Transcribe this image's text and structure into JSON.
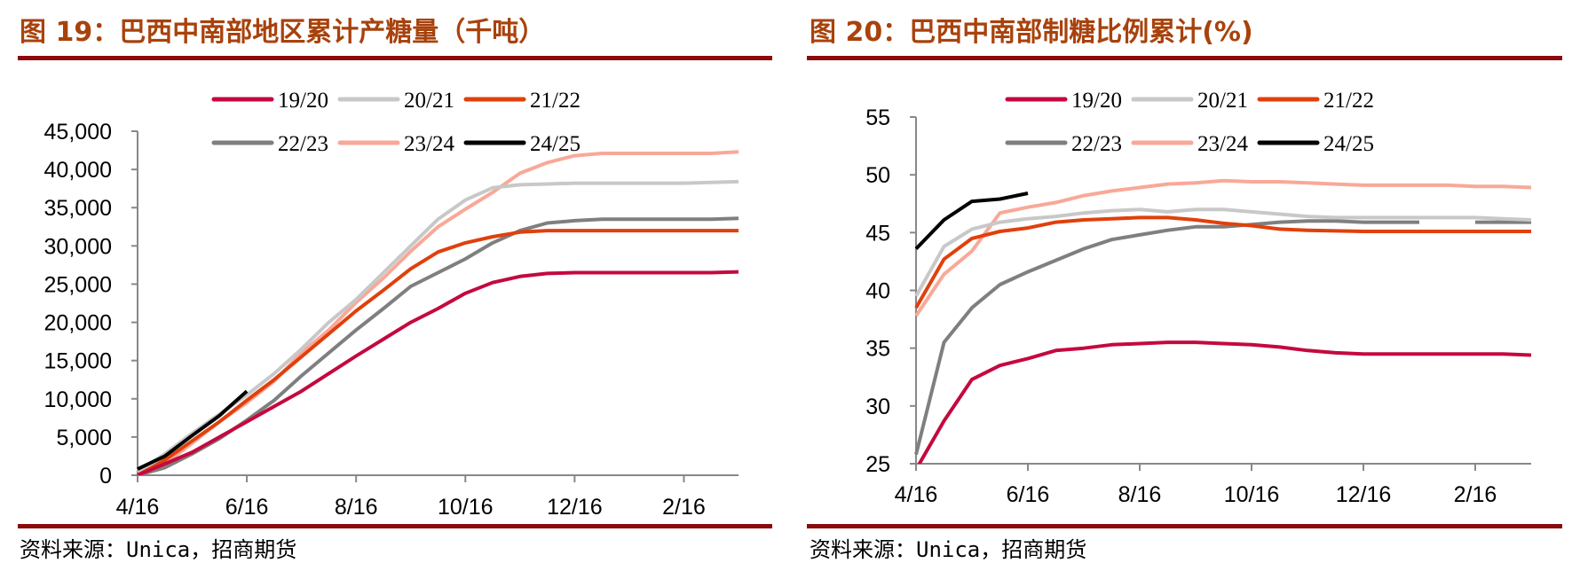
{
  "colors": {
    "rule": "#8b0a0a",
    "axis": "#888888",
    "series": {
      "19/20": "#c4093f",
      "20/21": "#c8c8c8",
      "21/22": "#e0400c",
      "22/23": "#7f7f7f",
      "23/24": "#f9a898",
      "24/25": "#000000"
    }
  },
  "chart_data": [
    {
      "type": "line",
      "title": "图 19：巴西中南部地区累计产糖量（千吨）",
      "source": "资料来源：Unica，招商期货",
      "x_ticks": [
        "4/16",
        "6/16",
        "8/16",
        "10/16",
        "12/16",
        "2/16"
      ],
      "x_tick_index": [
        0,
        4,
        8,
        12,
        16,
        20
      ],
      "x_points": 23,
      "y_ticks": [
        "0",
        "5,000",
        "10,000",
        "15,000",
        "20,000",
        "25,000",
        "30,000",
        "35,000",
        "40,000",
        "45,000"
      ],
      "ylim": [
        0,
        45000
      ],
      "legend": "top-center",
      "series": [
        {
          "name": "19/20",
          "values": [
            0,
            1500,
            3000,
            5000,
            7000,
            9000,
            11000,
            13300,
            15600,
            17800,
            20000,
            21800,
            23800,
            25200,
            26000,
            26400,
            26500,
            26500,
            26500,
            26500,
            26500,
            26500,
            26600
          ]
        },
        {
          "name": "20/21",
          "values": [
            500,
            2800,
            5500,
            8000,
            10500,
            13300,
            16500,
            20000,
            23000,
            26500,
            30000,
            33500,
            36000,
            37600,
            38000,
            38100,
            38200,
            38200,
            38200,
            38200,
            38200,
            38300,
            38400
          ]
        },
        {
          "name": "21/22",
          "values": [
            0,
            2000,
            4500,
            7000,
            9800,
            12500,
            15500,
            18500,
            21500,
            24200,
            27000,
            29200,
            30400,
            31200,
            31800,
            32000,
            32000,
            32000,
            32000,
            32000,
            32000,
            32000,
            32000
          ]
        },
        {
          "name": "22/23",
          "values": [
            0,
            1000,
            2800,
            4800,
            7200,
            9800,
            13000,
            16000,
            19000,
            21800,
            24700,
            26500,
            28300,
            30400,
            32000,
            33000,
            33300,
            33500,
            33500,
            33500,
            33500,
            33500,
            33600
          ]
        },
        {
          "name": "23/24",
          "values": [
            0,
            1500,
            4200,
            7000,
            9500,
            12300,
            16000,
            19000,
            22600,
            25800,
            29300,
            32500,
            34800,
            37000,
            39500,
            40900,
            41800,
            42100,
            42100,
            42100,
            42100,
            42100,
            42300
          ]
        },
        {
          "name": "24/25",
          "values": [
            800,
            2500,
            5200,
            7800,
            11000
          ]
        }
      ]
    },
    {
      "type": "line",
      "title": "图 20：巴西中南部制糖比例累计(%)",
      "source": "资料来源：Unica，招商期货",
      "x_ticks": [
        "4/16",
        "6/16",
        "8/16",
        "10/16",
        "12/16",
        "2/16"
      ],
      "x_tick_index": [
        0,
        4,
        8,
        12,
        16,
        20
      ],
      "x_points": 23,
      "y_ticks": [
        "25",
        "30",
        "35",
        "40",
        "45",
        "50",
        "55"
      ],
      "ylim": [
        25,
        55
      ],
      "legend": "top-center",
      "series": [
        {
          "name": "19/20",
          "values": [
            24.5,
            28.7,
            32.3,
            33.5,
            34.1,
            34.8,
            35,
            35.3,
            35.4,
            35.5,
            35.5,
            35.4,
            35.3,
            35.1,
            34.8,
            34.6,
            34.5,
            34.5,
            34.5,
            34.5,
            34.5,
            34.5,
            34.4
          ]
        },
        {
          "name": "20/21",
          "values": [
            39.5,
            43.8,
            45.3,
            45.9,
            46.2,
            46.4,
            46.7,
            46.9,
            47,
            46.8,
            47,
            47,
            46.8,
            46.6,
            46.4,
            46.3,
            46.3,
            46.3,
            46.3,
            46.3,
            46.3,
            46.2,
            46.1
          ]
        },
        {
          "name": "21/22",
          "values": [
            38.5,
            42.7,
            44.5,
            45.1,
            45.4,
            45.9,
            46.1,
            46.2,
            46.3,
            46.3,
            46.1,
            45.8,
            45.6,
            45.3,
            45.2,
            45.15,
            45.1,
            45.1,
            45.1,
            45.1,
            45.1,
            45.1,
            45.1
          ]
        },
        {
          "name": "22/23",
          "values": [
            25.8,
            35.5,
            38.5,
            40.5,
            41.6,
            42.6,
            43.6,
            44.4,
            44.8,
            45.2,
            45.5,
            45.5,
            45.7,
            45.9,
            46,
            46,
            45.9,
            45.9,
            45.9,
            null,
            45.9,
            45.9,
            45.9
          ]
        },
        {
          "name": "23/24",
          "values": [
            37.8,
            41.4,
            43.4,
            46.7,
            47.2,
            47.6,
            48.2,
            48.6,
            48.9,
            49.2,
            49.3,
            49.5,
            49.4,
            49.4,
            49.3,
            49.2,
            49.1,
            49.1,
            49.1,
            49.1,
            49.0,
            49.0,
            48.9
          ]
        },
        {
          "name": "24/25",
          "values": [
            43.6,
            46.1,
            47.7,
            47.9,
            48.4
          ]
        }
      ]
    }
  ]
}
